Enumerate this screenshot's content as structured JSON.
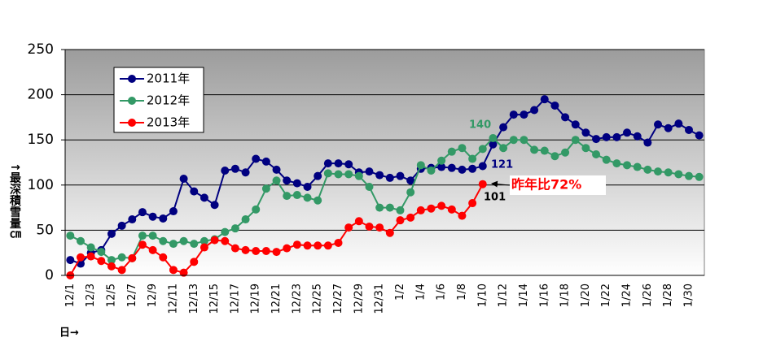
{
  "chart_data": {
    "type": "line",
    "y_label": "↑最深積雪量㎝",
    "x_label": "日→",
    "categories": [
      "12/1",
      null,
      "12/3",
      null,
      "12/5",
      null,
      "12/7",
      null,
      "12/9",
      null,
      "12/11",
      null,
      "12/13",
      null,
      "12/15",
      null,
      "12/17",
      null,
      "12/19",
      null,
      "12/21",
      null,
      "12/23",
      null,
      "12/25",
      null,
      "12/27",
      null,
      "12/29",
      null,
      "12/31",
      null,
      "1/2",
      null,
      "1/4",
      null,
      "1/6",
      null,
      "1/8",
      null,
      "1/10",
      null,
      "1/12",
      null,
      "1/14",
      null,
      "1/16",
      null,
      "1/18",
      null,
      "1/20",
      null,
      "1/22",
      null,
      "1/24",
      null,
      "1/26",
      null,
      "1/28",
      null,
      "1/30",
      null
    ],
    "series": [
      {
        "name": "2011年",
        "color": "#000080",
        "values": [
          17,
          13,
          25,
          28,
          46,
          55,
          62,
          70,
          65,
          63,
          71,
          107,
          93,
          86,
          78,
          116,
          118,
          114,
          129,
          126,
          117,
          105,
          102,
          98,
          110,
          124,
          124,
          123,
          114,
          115,
          111,
          108,
          110,
          105,
          118,
          119,
          120,
          119,
          117,
          118,
          121,
          145,
          164,
          178,
          178,
          183,
          195,
          188,
          175,
          167,
          158,
          151,
          153,
          153,
          158,
          154,
          147,
          167,
          163,
          168,
          161,
          155
        ]
      },
      {
        "name": "2012年",
        "color": "#339966",
        "values": [
          44,
          38,
          31,
          26,
          17,
          20,
          19,
          44,
          44,
          38,
          35,
          38,
          35,
          38,
          40,
          48,
          52,
          62,
          73,
          96,
          105,
          88,
          89,
          86,
          83,
          113,
          112,
          112,
          110,
          98,
          75,
          75,
          72,
          92,
          122,
          116,
          127,
          137,
          141,
          129,
          140,
          152,
          141,
          150,
          150,
          139,
          138,
          132,
          136,
          150,
          141,
          134,
          128,
          124,
          122,
          120,
          117,
          115,
          114,
          112,
          110,
          109
        ]
      },
      {
        "name": "2013年",
        "color": "#ff0000",
        "values": [
          0,
          20,
          21,
          16,
          10,
          6,
          19,
          34,
          28,
          20,
          6,
          3,
          15,
          31,
          39,
          38,
          30,
          28,
          27,
          27,
          26,
          30,
          34,
          33,
          33,
          33,
          36,
          53,
          60,
          54,
          53,
          47,
          61,
          64,
          72,
          74,
          77,
          73,
          66,
          80,
          101,
          null,
          null,
          null,
          null,
          null,
          null,
          null,
          null,
          null,
          null,
          null,
          null,
          null,
          null,
          null,
          null,
          null,
          null,
          null,
          null,
          null
        ]
      }
    ],
    "annotations": [
      "140",
      "121",
      "101",
      "昨年比72%"
    ],
    "ylim": [
      0,
      250
    ],
    "yticks": [
      0,
      50,
      100,
      150,
      200,
      250
    ],
    "grid": true,
    "legend": "upper left"
  }
}
